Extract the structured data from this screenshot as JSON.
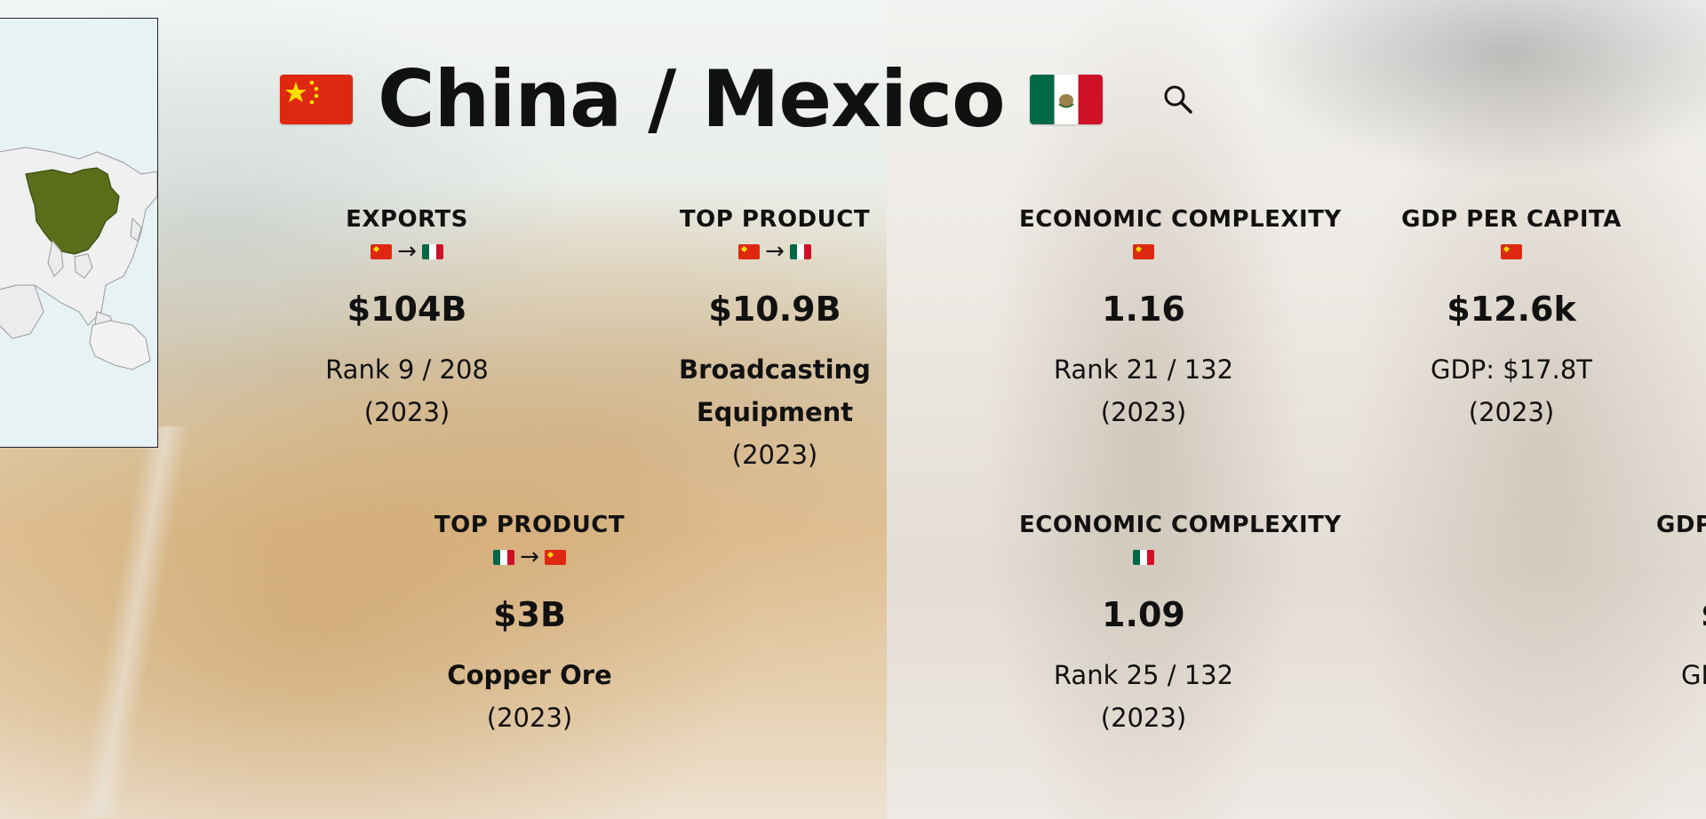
{
  "header": {
    "title": "China / Mexico",
    "left_flag": "china-flag",
    "right_flag": "mexico-flag",
    "search_icon": "search-icon"
  },
  "colors": {
    "china_red": "#de2910",
    "china_yellow": "#ffde00",
    "mexico_green": "#006847",
    "mexico_red": "#ce1126",
    "map_highlight": "#5a6e1a"
  },
  "cards": [
    {
      "label": "EXPORTS",
      "flags": [
        "china",
        "mexico"
      ],
      "value": "$104B",
      "sub_lines": [
        "Rank 9 / 208",
        "(2023)"
      ]
    },
    {
      "label": "TOP PRODUCT",
      "flags": [
        "china",
        "mexico"
      ],
      "value": "$10.9B",
      "product": "Broadcasting Equipment",
      "product_line1": "Broadcasting",
      "product_line2": "Equipment",
      "sub_lines": [
        "(2023)"
      ]
    },
    {
      "label": "ECONOMIC COMPLEXITY",
      "flags": [
        "china"
      ],
      "value": "1.16",
      "sub_lines": [
        "Rank 21 / 132",
        "(2023)"
      ]
    },
    {
      "label": "GDP PER CAPITA",
      "flags": [
        "china"
      ],
      "value": "$12.6k",
      "sub_lines": [
        "GDP: $17.8T",
        "(2023)"
      ]
    },
    {
      "label": "TOP PRODUCT",
      "flags": [
        "mexico",
        "china"
      ],
      "value": "$3B",
      "product": "Copper Ore",
      "sub_lines": [
        "(2023)"
      ]
    },
    {
      "label": "ECONOMIC COMPLEXITY",
      "flags": [
        "mexico"
      ],
      "value": "1.09",
      "sub_lines": [
        "Rank 25 / 132",
        "(2023)"
      ]
    },
    {
      "label": "GDP",
      "value": "$",
      "sub_lines": [
        "GD"
      ]
    }
  ],
  "arrow": "→"
}
